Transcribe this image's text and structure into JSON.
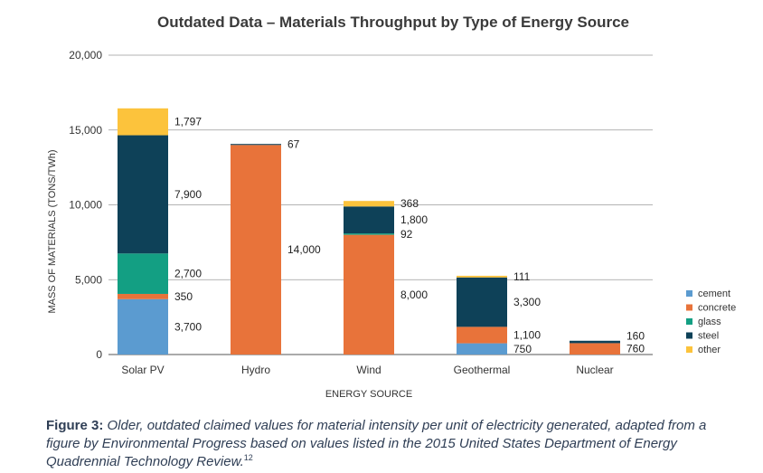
{
  "chart_data": {
    "type": "bar",
    "stacked": true,
    "title": "Outdated Data – Materials Throughput by Type of Energy Source",
    "xlabel": "ENERGY SOURCE",
    "ylabel": "MASS OF MATERIALS (TONS/TWh)",
    "ylim": [
      0,
      20000
    ],
    "yticks": [
      0,
      5000,
      10000,
      15000,
      20000
    ],
    "ytick_labels": [
      "0",
      "5,000",
      "10,000",
      "15,000",
      "20,000"
    ],
    "grid": true,
    "legend_position": "right",
    "categories": [
      "Solar PV",
      "Hydro",
      "Wind",
      "Geothermal",
      "Nuclear"
    ],
    "series": [
      {
        "name": "cement",
        "color": "#5b9bd0",
        "values": [
          3700,
          0,
          0,
          750,
          0
        ]
      },
      {
        "name": "concrete",
        "color": "#e8733a",
        "values": [
          350,
          14000,
          8000,
          1100,
          760
        ]
      },
      {
        "name": "glass",
        "color": "#139f83",
        "values": [
          2700,
          0,
          92,
          0,
          0
        ]
      },
      {
        "name": "steel",
        "color": "#0e4158",
        "values": [
          7900,
          67,
          1800,
          3300,
          160
        ]
      },
      {
        "name": "other",
        "color": "#fcc33c",
        "values": [
          1797,
          0,
          368,
          111,
          0
        ]
      }
    ],
    "data_labels": [
      [
        "3,700",
        "350",
        "2,700",
        "7,900",
        "1,797"
      ],
      [
        null,
        "14,000",
        null,
        "67",
        null
      ],
      [
        null,
        "8,000",
        "92",
        "1,800",
        "368"
      ],
      [
        "750",
        "1,100",
        null,
        "3,300",
        "111"
      ],
      [
        null,
        "760",
        null,
        "160",
        null
      ]
    ]
  },
  "caption": {
    "label": "Figure 3:",
    "text": "Older, outdated claimed values for material intensity per unit of electricity generated, adapted from a figure by Environmental Progress based on values listed in the 2015 United States Department of Energy Quadrennial Technology Review.",
    "footnote": "12"
  }
}
